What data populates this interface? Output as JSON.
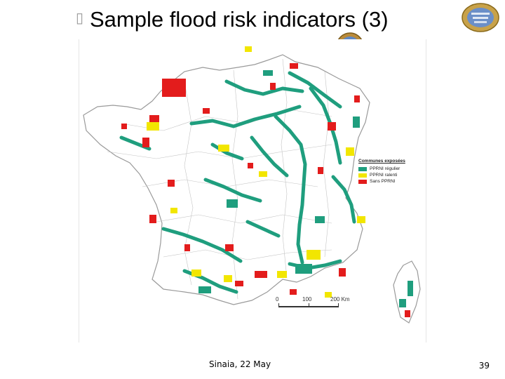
{
  "slide": {
    "title": "Sample flood risk indicators (3)",
    "footer": "Sinaia, 22 May",
    "page_number": "39"
  },
  "map": {
    "legend": {
      "title": "Communes exposées",
      "items": [
        {
          "label": "PPRNI régulier",
          "color": "#1f9e7e"
        },
        {
          "label": "PPRNI ralenti",
          "color": "#f2e600"
        },
        {
          "label": "Sans PPRNI",
          "color": "#e31c1c"
        }
      ]
    },
    "scale": {
      "labels": [
        "0",
        "100",
        "200 Km"
      ]
    },
    "colors": {
      "outline": "#9a9a9a",
      "land": "#ffffff"
    }
  }
}
